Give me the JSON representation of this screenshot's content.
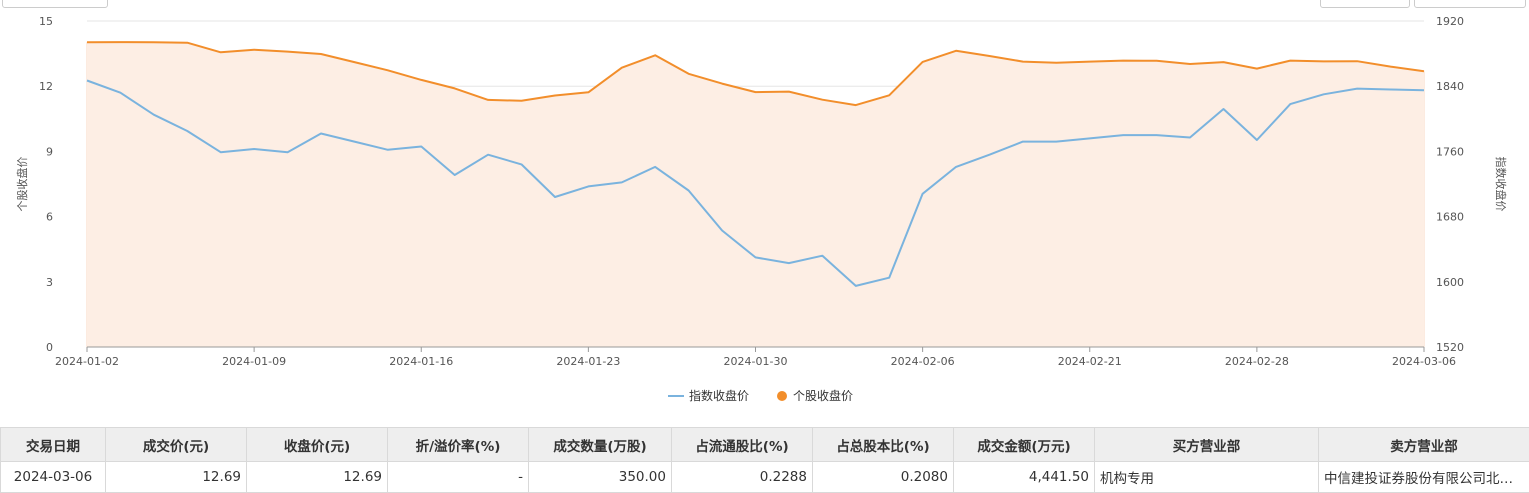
{
  "chart_data": {
    "type": "line",
    "x": [
      "2024-01-02",
      "2024-01-03",
      "2024-01-04",
      "2024-01-05",
      "2024-01-08",
      "2024-01-09",
      "2024-01-10",
      "2024-01-11",
      "2024-01-12",
      "2024-01-15",
      "2024-01-16",
      "2024-01-17",
      "2024-01-18",
      "2024-01-19",
      "2024-01-22",
      "2024-01-23",
      "2024-01-24",
      "2024-01-25",
      "2024-01-26",
      "2024-01-29",
      "2024-01-30",
      "2024-01-31",
      "2024-02-01",
      "2024-02-02",
      "2024-02-05",
      "2024-02-06",
      "2024-02-07",
      "2024-02-08",
      "2024-02-19",
      "2024-02-20",
      "2024-02-21",
      "2024-02-22",
      "2024-02-23",
      "2024-02-26",
      "2024-02-27",
      "2024-02-28",
      "2024-02-29",
      "2024-03-01",
      "2024-03-04",
      "2024-03-05",
      "2024-03-06"
    ],
    "xticks": [
      "2024-01-02",
      "2024-01-09",
      "2024-01-16",
      "2024-01-23",
      "2024-01-30",
      "2024-02-06",
      "2024-02-21",
      "2024-02-28",
      "2024-03-06"
    ],
    "series": [
      {
        "name": "指数收盘价",
        "axis": "right",
        "color": "#7ab3de",
        "values": [
          1847,
          1832,
          1805,
          1785,
          1759,
          1763,
          1759,
          1782,
          1772,
          1762,
          1766,
          1731,
          1756,
          1744,
          1704,
          1717,
          1722,
          1741,
          1712,
          1663,
          1630,
          1623,
          1632,
          1595,
          1605,
          1708,
          1741,
          1756,
          1772,
          1772,
          1776,
          1780,
          1780,
          1777,
          1812,
          1774,
          1818,
          1830,
          1837,
          1836,
          1835
        ]
      },
      {
        "name": "个股收盘价",
        "axis": "left",
        "color": "#f28e2b",
        "values": [
          14.02,
          14.03,
          14.02,
          14.0,
          13.56,
          13.68,
          13.59,
          13.48,
          13.11,
          12.73,
          12.29,
          11.9,
          11.37,
          11.33,
          11.57,
          11.72,
          12.85,
          13.42,
          12.57,
          12.12,
          11.73,
          11.75,
          11.38,
          11.13,
          11.58,
          13.12,
          13.63,
          13.39,
          13.13,
          13.08,
          13.13,
          13.18,
          13.17,
          13.02,
          13.11,
          12.81,
          13.18,
          13.14,
          13.15,
          12.9,
          12.69
        ]
      }
    ],
    "y_left": {
      "label": "个股收盘价",
      "lim": [
        0,
        15
      ],
      "ticks": [
        "0",
        "3",
        "6",
        "9",
        "12",
        "15"
      ]
    },
    "y_right": {
      "label": "指数收盘价",
      "lim": [
        1520,
        1920
      ],
      "ticks": [
        "1520",
        "1600",
        "1680",
        "1760",
        "1840",
        "1920"
      ]
    },
    "legend": {
      "position": "bottom",
      "items": [
        "指数收盘价",
        "个股收盘价"
      ]
    },
    "area_fill": "#fdeee4",
    "grid": true
  },
  "table": {
    "headers": [
      "交易日期",
      "成交价(元)",
      "收盘价(元)",
      "折/溢价率(%)",
      "成交数量(万股)",
      "占流通股比(%)",
      "占总股本比(%)",
      "成交金额(万元)",
      "买方营业部",
      "卖方营业部"
    ],
    "rows": [
      [
        "2024-03-06",
        "12.69",
        "12.69",
        "-",
        "350.00",
        "0.2288",
        "0.2080",
        "4,441.50",
        "机构专用",
        "中信建投证券股份有限公司北京朝阳门北大街证券营业部"
      ]
    ]
  }
}
